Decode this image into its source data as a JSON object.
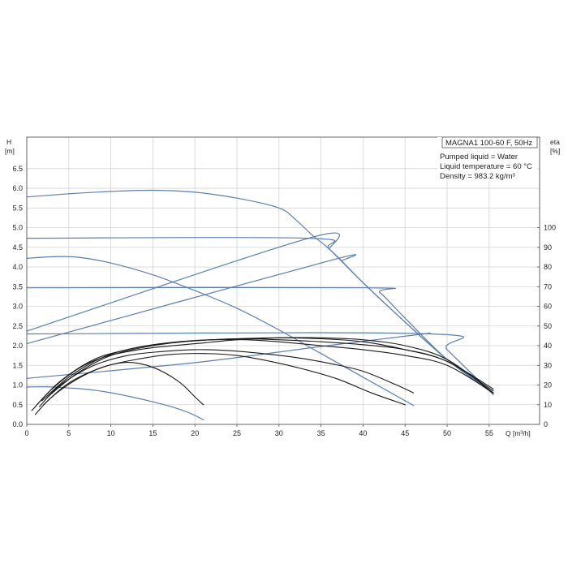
{
  "chart_data": {
    "type": "line",
    "title": "MAGNA1 100-60 F, 50Hz",
    "info_lines": [
      "Pumped liquid = Water",
      "Liquid temperature = 60 °C",
      "Density = 983.2 kg/m³"
    ],
    "xlabel": "Q [m³/h]",
    "ylabel_left": [
      "H",
      "[m]"
    ],
    "ylabel_right": [
      "eta",
      "[%]"
    ],
    "xlim": [
      0,
      61
    ],
    "ylim_left": [
      0,
      7.3
    ],
    "ylim_right": [
      0,
      100
    ],
    "x_ticks": [
      "0",
      "5",
      "10",
      "15",
      "20",
      "25",
      "30",
      "35",
      "40",
      "45",
      "50",
      "55"
    ],
    "y_left_ticks": [
      "0.0",
      "0.5",
      "1.0",
      "1.5",
      "2.0",
      "2.5",
      "3.0",
      "3.5",
      "4.0",
      "4.5",
      "5.0",
      "5.5",
      "6.0",
      "6.5"
    ],
    "y_right_ticks": [
      "0",
      "10",
      "20",
      "30",
      "40",
      "50",
      "60",
      "70",
      "80",
      "90",
      "100"
    ],
    "grid": true,
    "colors": {
      "head_curves": "#5b7fae",
      "efficiency_curves": "#1a1a1a",
      "grid": "#d3d3d3",
      "frame": "#555555"
    },
    "series": [
      {
        "kind": "head",
        "points": [
          [
            0,
            5.78
          ],
          [
            5,
            5.86
          ],
          [
            10,
            5.92
          ],
          [
            15,
            5.95
          ],
          [
            20,
            5.9
          ],
          [
            25,
            5.75
          ],
          [
            30,
            5.5
          ],
          [
            32,
            5.2
          ],
          [
            34,
            4.8
          ],
          [
            36,
            4.45
          ],
          [
            40,
            3.6
          ],
          [
            45,
            2.6
          ],
          [
            50,
            1.65
          ],
          [
            55.5,
            0.8
          ]
        ]
      },
      {
        "kind": "head",
        "points": [
          [
            0,
            4.73
          ],
          [
            33.5,
            4.73
          ],
          [
            36,
            4.45
          ],
          [
            40,
            3.6
          ],
          [
            45,
            2.6
          ],
          [
            50,
            1.65
          ],
          [
            55.5,
            0.8
          ]
        ]
      },
      {
        "kind": "head",
        "points": [
          [
            0,
            4.22
          ],
          [
            3,
            4.26
          ],
          [
            6,
            4.25
          ],
          [
            10,
            4.1
          ],
          [
            15,
            3.8
          ],
          [
            20,
            3.4
          ],
          [
            25,
            2.95
          ],
          [
            30,
            2.4
          ],
          [
            35,
            1.8
          ],
          [
            40,
            1.2
          ],
          [
            46,
            0.48
          ]
        ]
      },
      {
        "kind": "head",
        "points": [
          [
            0,
            3.47
          ],
          [
            40.5,
            3.47
          ],
          [
            42,
            3.35
          ],
          [
            45,
            2.7
          ],
          [
            50,
            1.65
          ],
          [
            55.5,
            0.78
          ]
        ]
      },
      {
        "kind": "head",
        "points": [
          [
            0,
            2.3
          ],
          [
            48,
            2.3
          ],
          [
            50,
            1.9
          ],
          [
            55.5,
            0.75
          ]
        ]
      },
      {
        "kind": "head",
        "points": [
          [
            0,
            0.95
          ],
          [
            3,
            0.95
          ],
          [
            8,
            0.87
          ],
          [
            12,
            0.72
          ],
          [
            16,
            0.52
          ],
          [
            19,
            0.32
          ],
          [
            21,
            0.12
          ]
        ]
      },
      {
        "kind": "system",
        "points": [
          [
            0,
            2.37
          ],
          [
            34,
            4.76
          ],
          [
            36,
            4.45
          ]
        ]
      },
      {
        "kind": "system",
        "points": [
          [
            0,
            2.05
          ],
          [
            36,
            4.16
          ],
          [
            37.5,
            4.16
          ]
        ]
      },
      {
        "kind": "system",
        "points": [
          [
            0,
            1.17
          ],
          [
            20,
            1.57
          ],
          [
            35,
            1.98
          ],
          [
            48,
            2.32
          ]
        ]
      },
      {
        "kind": "efficiency",
        "points": [
          [
            0.6,
            7
          ],
          [
            3,
            18
          ],
          [
            6,
            28
          ],
          [
            9,
            34
          ],
          [
            12,
            37
          ],
          [
            15,
            39
          ],
          [
            20,
            41
          ],
          [
            25,
            43
          ],
          [
            30,
            44
          ],
          [
            35,
            44
          ],
          [
            40,
            43
          ],
          [
            45,
            40
          ],
          [
            50,
            33
          ],
          [
            55.5,
            16
          ]
        ]
      },
      {
        "kind": "efficiency",
        "points": [
          [
            1.2,
            10
          ],
          [
            4,
            22
          ],
          [
            8,
            33
          ],
          [
            12,
            38
          ],
          [
            16,
            41
          ],
          [
            20,
            42.5
          ],
          [
            25,
            43.5
          ],
          [
            30,
            43
          ],
          [
            35,
            42
          ],
          [
            40,
            40.5
          ],
          [
            45,
            38
          ],
          [
            50,
            32
          ],
          [
            55.5,
            17
          ]
        ]
      },
      {
        "kind": "efficiency",
        "points": [
          [
            1.8,
            12
          ],
          [
            5,
            24
          ],
          [
            9,
            34
          ],
          [
            13,
            39
          ],
          [
            18,
            42
          ],
          [
            22,
            43
          ],
          [
            26,
            43
          ],
          [
            30,
            42
          ],
          [
            35,
            40
          ],
          [
            40,
            38
          ],
          [
            45,
            35
          ],
          [
            50,
            30
          ],
          [
            55.5,
            16
          ]
        ]
      },
      {
        "kind": "efficiency",
        "points": [
          [
            2.5,
            14
          ],
          [
            6,
            26
          ],
          [
            10,
            35
          ],
          [
            15,
            40
          ],
          [
            20,
            42.5
          ],
          [
            25,
            43.5
          ],
          [
            30,
            44
          ],
          [
            35,
            43.5
          ],
          [
            40,
            42
          ],
          [
            45,
            38
          ],
          [
            50,
            32
          ],
          [
            55.5,
            18
          ]
        ]
      },
      {
        "kind": "efficiency",
        "points": [
          [
            1.5,
            9
          ],
          [
            4,
            20
          ],
          [
            8,
            30
          ],
          [
            12,
            35
          ],
          [
            16,
            37
          ],
          [
            20,
            38
          ],
          [
            24,
            37.5
          ],
          [
            28,
            36
          ],
          [
            32,
            34
          ],
          [
            36,
            31
          ],
          [
            40,
            27
          ],
          [
            44,
            20
          ],
          [
            46,
            16
          ]
        ]
      },
      {
        "kind": "efficiency",
        "points": [
          [
            2,
            10
          ],
          [
            5,
            21
          ],
          [
            9,
            29
          ],
          [
            13,
            33
          ],
          [
            17,
            35.5
          ],
          [
            21,
            36
          ],
          [
            25,
            35
          ],
          [
            29,
            32
          ],
          [
            33,
            28
          ],
          [
            37,
            23
          ],
          [
            41,
            16
          ],
          [
            45,
            10
          ]
        ]
      },
      {
        "kind": "efficiency",
        "points": [
          [
            1,
            5
          ],
          [
            3,
            14
          ],
          [
            6,
            23
          ],
          [
            9,
            29
          ],
          [
            12,
            31.5
          ],
          [
            15,
            29
          ],
          [
            18,
            22
          ],
          [
            20,
            14
          ],
          [
            21,
            10
          ]
        ]
      }
    ]
  }
}
